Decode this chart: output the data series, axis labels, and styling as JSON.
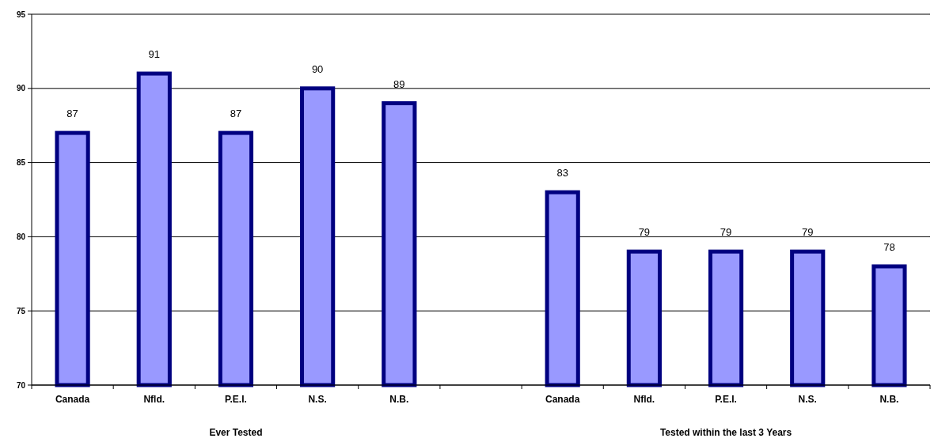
{
  "chart_data": {
    "type": "bar",
    "categories": [
      "Canada",
      "Nfld.",
      "P.E.I.",
      "N.S.",
      "N.B.",
      null,
      "Canada",
      "Nfld.",
      "P.E.I.",
      "N.S.",
      "N.B."
    ],
    "values": [
      87,
      91,
      87,
      90,
      89,
      null,
      83,
      79,
      79,
      79,
      78
    ],
    "color": "#9999ff",
    "ylim": [
      70,
      95
    ],
    "yticks": [
      70,
      75,
      80,
      85,
      90,
      95
    ],
    "grid": "y",
    "data_labels": true,
    "annotations": [
      "Ever Tested",
      "Tested within the last 3 Years"
    ]
  }
}
